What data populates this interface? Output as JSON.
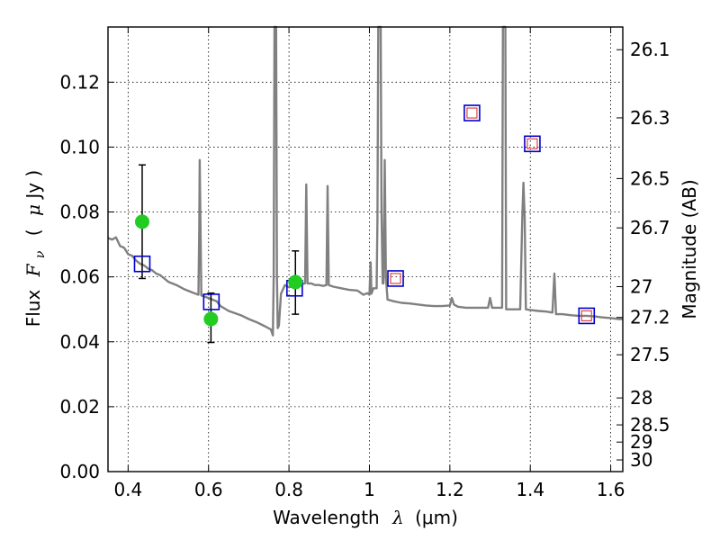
{
  "chart_data": {
    "type": "line",
    "xlabel_text": "Wavelength",
    "xlabel_symbol": "λ",
    "xlabel_unit": "(μm)",
    "ylabel_text": "Flux",
    "ylabel_symbol_main": "F",
    "ylabel_symbol_sub": "ν",
    "ylabel_unit_open": "(",
    "ylabel_unit_mu": "μ",
    "ylabel_unit_rest": "Jy )",
    "y2label": "Magnitude (AB)",
    "xlim": [
      0.35,
      1.63
    ],
    "ylim": [
      0.0,
      0.137
    ],
    "grid": true,
    "x_ticks": [
      0.4,
      0.6,
      0.8,
      1.0,
      1.2,
      1.4,
      1.6
    ],
    "x_tick_labels": [
      "0.4",
      "0.6",
      "0.8",
      "1",
      "1.2",
      "1.4",
      "1.6"
    ],
    "y_ticks": [
      0.0,
      0.02,
      0.04,
      0.06,
      0.08,
      0.1,
      0.12
    ],
    "y_tick_labels": [
      "0.00",
      "0.02",
      "0.04",
      "0.06",
      "0.08",
      "0.10",
      "0.12"
    ],
    "y2_ticks": [
      {
        "label": "26.1",
        "flux": 0.13
      },
      {
        "label": "26.3",
        "flux": 0.109
      },
      {
        "label": "26.5",
        "flux": 0.0903
      },
      {
        "label": "26.7",
        "flux": 0.0751
      },
      {
        "label": "27",
        "flux": 0.057
      },
      {
        "label": "27.2",
        "flux": 0.0475
      },
      {
        "label": "27.5",
        "flux": 0.036
      },
      {
        "label": "28",
        "flux": 0.0227
      },
      {
        "label": "28.5",
        "flux": 0.0144
      },
      {
        "label": "29",
        "flux": 0.0091
      },
      {
        "label": "30",
        "flux": 0.0036
      }
    ],
    "sed_model": {
      "color": "#808080",
      "points": [
        [
          0.35,
          0.072
        ],
        [
          0.36,
          0.0715
        ],
        [
          0.37,
          0.0722
        ],
        [
          0.38,
          0.0695
        ],
        [
          0.39,
          0.069
        ],
        [
          0.4,
          0.067
        ],
        [
          0.41,
          0.0665
        ],
        [
          0.42,
          0.065
        ],
        [
          0.43,
          0.064
        ],
        [
          0.44,
          0.0635
        ],
        [
          0.45,
          0.0625
        ],
        [
          0.46,
          0.062
        ],
        [
          0.47,
          0.061
        ],
        [
          0.48,
          0.0605
        ],
        [
          0.49,
          0.0595
        ],
        [
          0.5,
          0.0585
        ],
        [
          0.52,
          0.0575
        ],
        [
          0.54,
          0.0562
        ],
        [
          0.56,
          0.0552
        ],
        [
          0.575,
          0.0545
        ],
        [
          0.577,
          0.075
        ],
        [
          0.578,
          0.096
        ],
        [
          0.58,
          0.075
        ],
        [
          0.582,
          0.0543
        ],
        [
          0.6,
          0.0535
        ],
        [
          0.62,
          0.0525
        ],
        [
          0.63,
          0.051
        ],
        [
          0.65,
          0.0495
        ],
        [
          0.68,
          0.0482
        ],
        [
          0.7,
          0.047
        ],
        [
          0.72,
          0.046
        ],
        [
          0.74,
          0.0448
        ],
        [
          0.755,
          0.0438
        ],
        [
          0.76,
          0.042
        ],
        [
          0.762,
          0.06
        ],
        [
          0.764,
          0.137
        ],
        [
          0.768,
          0.137
        ],
        [
          0.77,
          0.06
        ],
        [
          0.772,
          0.0442
        ],
        [
          0.775,
          0.045
        ],
        [
          0.78,
          0.0548
        ],
        [
          0.79,
          0.0575
        ],
        [
          0.8,
          0.0568
        ],
        [
          0.81,
          0.0572
        ],
        [
          0.82,
          0.058
        ],
        [
          0.83,
          0.0578
        ],
        [
          0.84,
          0.058
        ],
        [
          0.843,
          0.0885
        ],
        [
          0.846,
          0.058
        ],
        [
          0.855,
          0.058
        ],
        [
          0.865,
          0.0575
        ],
        [
          0.875,
          0.0575
        ],
        [
          0.885,
          0.0572
        ],
        [
          0.893,
          0.0575
        ],
        [
          0.896,
          0.088
        ],
        [
          0.899,
          0.0575
        ],
        [
          0.91,
          0.057
        ],
        [
          0.93,
          0.0565
        ],
        [
          0.95,
          0.056
        ],
        [
          0.97,
          0.0558
        ],
        [
          0.985,
          0.0545
        ],
        [
          0.995,
          0.055
        ],
        [
          1.0,
          0.0545
        ],
        [
          1.003,
          0.0645
        ],
        [
          1.005,
          0.0548
        ],
        [
          1.01,
          0.0565
        ],
        [
          1.018,
          0.0565
        ],
        [
          1.02,
          0.078
        ],
        [
          1.022,
          0.137
        ],
        [
          1.028,
          0.137
        ],
        [
          1.03,
          0.08
        ],
        [
          1.033,
          0.058
        ],
        [
          1.035,
          0.058
        ],
        [
          1.038,
          0.096
        ],
        [
          1.041,
          0.06
        ],
        [
          1.045,
          0.053
        ],
        [
          1.06,
          0.0525
        ],
        [
          1.08,
          0.052
        ],
        [
          1.1,
          0.0518
        ],
        [
          1.12,
          0.0515
        ],
        [
          1.14,
          0.0512
        ],
        [
          1.16,
          0.051
        ],
        [
          1.18,
          0.051
        ],
        [
          1.2,
          0.0512
        ],
        [
          1.205,
          0.0535
        ],
        [
          1.21,
          0.0515
        ],
        [
          1.22,
          0.0508
        ],
        [
          1.24,
          0.0505
        ],
        [
          1.26,
          0.0505
        ],
        [
          1.28,
          0.0505
        ],
        [
          1.295,
          0.0505
        ],
        [
          1.3,
          0.0535
        ],
        [
          1.305,
          0.0505
        ],
        [
          1.32,
          0.0505
        ],
        [
          1.33,
          0.0505
        ],
        [
          1.332,
          0.137
        ],
        [
          1.338,
          0.137
        ],
        [
          1.34,
          0.05
        ],
        [
          1.36,
          0.05
        ],
        [
          1.375,
          0.05
        ],
        [
          1.38,
          0.078
        ],
        [
          1.383,
          0.089
        ],
        [
          1.386,
          0.078
        ],
        [
          1.389,
          0.05
        ],
        [
          1.4,
          0.0498
        ],
        [
          1.42,
          0.0495
        ],
        [
          1.44,
          0.0493
        ],
        [
          1.455,
          0.049
        ],
        [
          1.46,
          0.061
        ],
        [
          1.464,
          0.0485
        ],
        [
          1.48,
          0.0485
        ],
        [
          1.5,
          0.0482
        ],
        [
          1.52,
          0.048
        ],
        [
          1.54,
          0.048
        ],
        [
          1.56,
          0.0478
        ],
        [
          1.58,
          0.0475
        ],
        [
          1.6,
          0.0473
        ],
        [
          1.62,
          0.047
        ],
        [
          1.63,
          0.047
        ]
      ]
    },
    "model_photometry": {
      "marker": "open-square",
      "color": "#0000cc",
      "points": [
        [
          0.435,
          0.064
        ],
        [
          0.607,
          0.0523
        ],
        [
          0.814,
          0.0565
        ],
        [
          1.065,
          0.0595
        ],
        [
          1.255,
          0.1105
        ],
        [
          1.405,
          0.101
        ],
        [
          1.54,
          0.048
        ]
      ]
    },
    "upper_limits": {
      "marker": "small-square",
      "color": "#dd4444",
      "points": [
        [
          1.065,
          0.0595
        ],
        [
          1.255,
          0.1105
        ],
        [
          1.405,
          0.101
        ],
        [
          1.54,
          0.048
        ]
      ]
    },
    "observed_photometry": {
      "marker": "filled-circle",
      "color": "#22cc22",
      "points": [
        {
          "x": 0.435,
          "y": 0.077,
          "yerr_low": 0.0595,
          "yerr_high": 0.0945
        },
        {
          "x": 0.606,
          "y": 0.047,
          "yerr_low": 0.0398,
          "yerr_high": 0.055
        },
        {
          "x": 0.816,
          "y": 0.0584,
          "yerr_low": 0.0485,
          "yerr_high": 0.068
        }
      ]
    }
  }
}
